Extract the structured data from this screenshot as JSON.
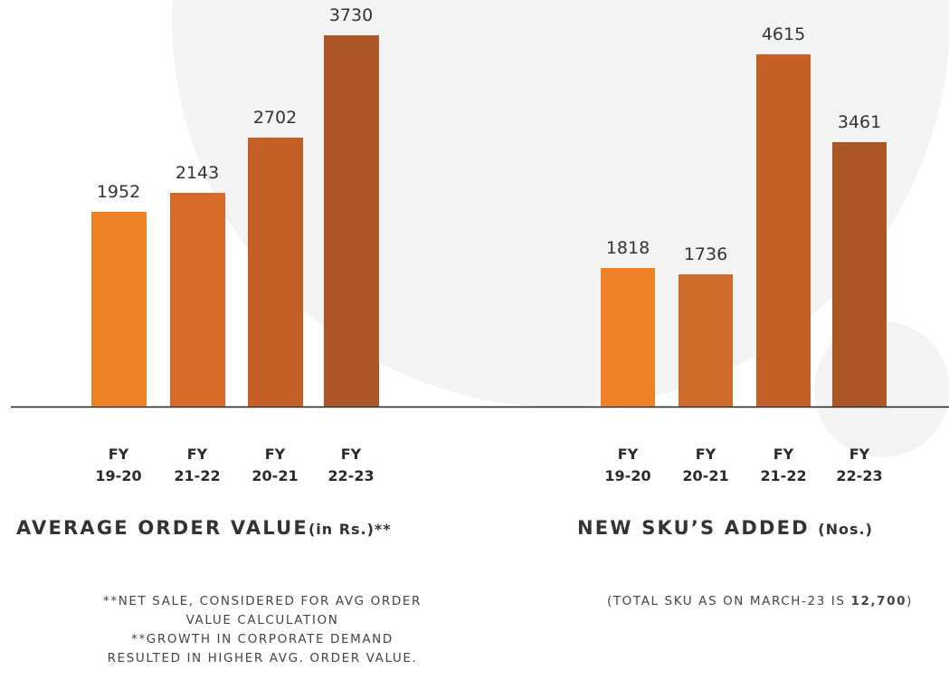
{
  "chart_data": [
    {
      "type": "bar",
      "title": "AVERAGE ORDER VALUE",
      "title_unit": "(in Rs.)**",
      "categories": [
        "FY 19-20",
        "FY 21-22",
        "FY 20-21",
        "FY 22-23"
      ],
      "values": [
        1952,
        2143,
        2702,
        3730
      ],
      "colors": [
        "#ee8125",
        "#d56a29",
        "#c55f28",
        "#ad5726"
      ],
      "notes": [
        "**NET SALE, CONSIDERED FOR AVG ORDER VALUE CALCULATION",
        "**GROWTH IN CORPORATE DEMAND RESULTED IN HIGHER AVG. ORDER VALUE."
      ]
    },
    {
      "type": "bar",
      "title": "NEW SKU’S ADDED",
      "title_unit": "(Nos.)",
      "categories": [
        "FY 19-20",
        "FY 20-21",
        "FY 21-22",
        "FY 22-23"
      ],
      "values": [
        1818,
        1736,
        4615,
        3461
      ],
      "colors": [
        "#ee8125",
        "#d06a2a",
        "#c55f28",
        "#ad5726"
      ],
      "note": "(TOTAL SKU AS ON MARCH-23 IS",
      "note_highlight": "12,700",
      "note_end": ")"
    }
  ]
}
